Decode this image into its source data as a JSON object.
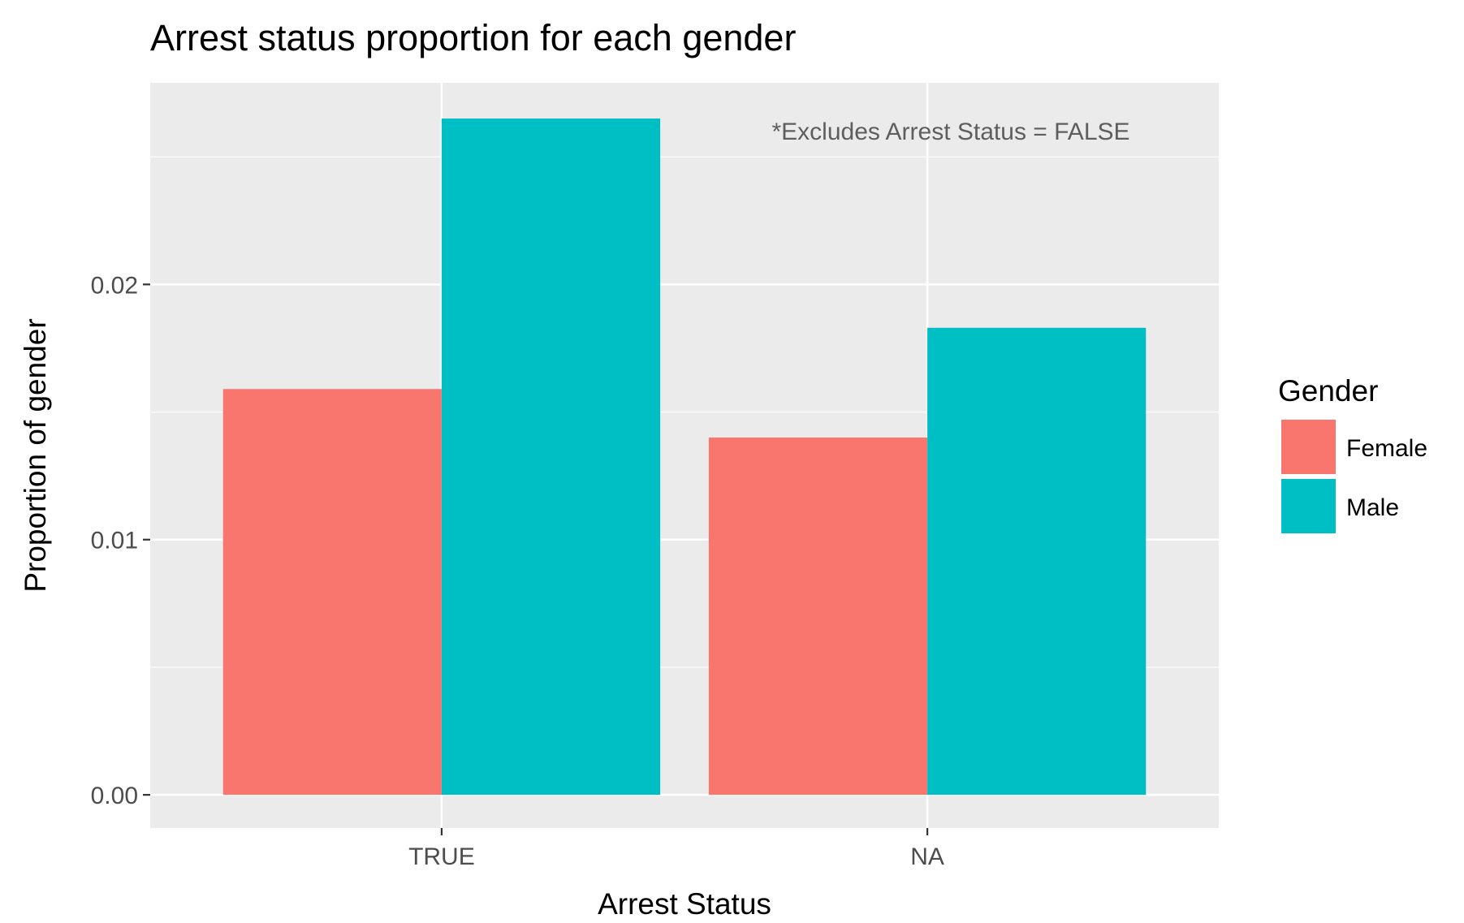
{
  "chart_data": {
    "type": "bar",
    "title": "Arrest status proportion for each gender",
    "xlabel": "Arrest Status",
    "ylabel": "Proportion of gender",
    "categories": [
      "TRUE",
      "NA"
    ],
    "series": [
      {
        "name": "Female",
        "color": "#F8766D",
        "values": [
          0.0159,
          0.014
        ]
      },
      {
        "name": "Male",
        "color": "#00BFC4",
        "values": [
          0.0265,
          0.0183
        ]
      }
    ],
    "ylim": [
      -0.0013,
      0.0279
    ],
    "yticks": [
      0.0,
      0.01,
      0.02
    ],
    "ytick_labels": [
      "0.00",
      "0.01",
      "0.02"
    ],
    "grid": true,
    "legend": {
      "title": "Gender",
      "position": "right",
      "labels": [
        "Female",
        "Male"
      ]
    },
    "annotation": "*Excludes Arrest Status = FALSE",
    "colors": {
      "panel_background": "#EBEBEB",
      "grid": "#FFFFFF",
      "tick_text": "#4D4D4D"
    }
  }
}
